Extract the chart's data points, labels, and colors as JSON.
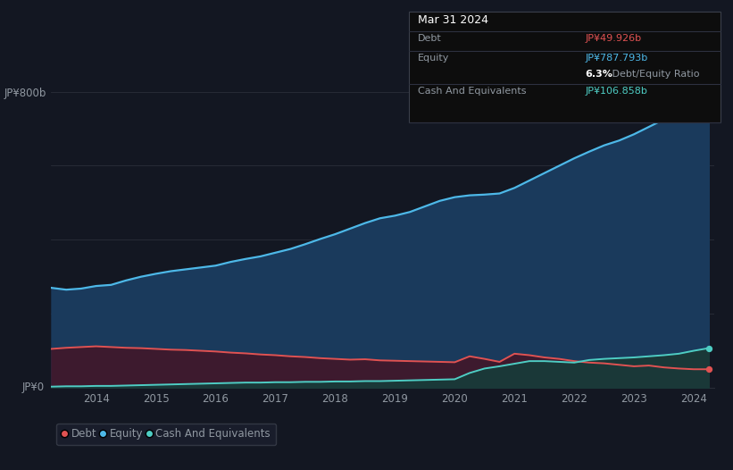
{
  "bg_color": "#131722",
  "plot_bg_color": "#131722",
  "title_box": {
    "date": "Mar 31 2024",
    "debt_label": "Debt",
    "debt_value": "JP¥49.926b",
    "equity_label": "Equity",
    "equity_value": "JP¥787.793b",
    "ratio_bold": "6.3%",
    "ratio_text": " Debt/Equity Ratio",
    "cash_label": "Cash And Equivalents",
    "cash_value": "JP¥106.858b"
  },
  "ylabel_800": "JP¥800b",
  "ylabel_0": "JP¥0",
  "years": [
    2013.25,
    2013.5,
    2013.75,
    2014.0,
    2014.25,
    2014.5,
    2014.75,
    2015.0,
    2015.25,
    2015.5,
    2015.75,
    2016.0,
    2016.25,
    2016.5,
    2016.75,
    2017.0,
    2017.25,
    2017.5,
    2017.75,
    2018.0,
    2018.25,
    2018.5,
    2018.75,
    2019.0,
    2019.25,
    2019.5,
    2019.75,
    2020.0,
    2020.25,
    2020.5,
    2020.75,
    2021.0,
    2021.25,
    2021.5,
    2021.75,
    2022.0,
    2022.25,
    2022.5,
    2022.75,
    2023.0,
    2023.25,
    2023.5,
    2023.75,
    2024.0,
    2024.25
  ],
  "equity": [
    270,
    265,
    268,
    275,
    278,
    290,
    300,
    308,
    315,
    320,
    325,
    330,
    340,
    348,
    355,
    365,
    375,
    388,
    402,
    415,
    430,
    445,
    458,
    465,
    475,
    490,
    505,
    515,
    520,
    522,
    525,
    540,
    560,
    580,
    600,
    620,
    638,
    655,
    668,
    685,
    705,
    725,
    748,
    788,
    788
  ],
  "debt": [
    105,
    108,
    110,
    112,
    110,
    108,
    107,
    105,
    103,
    102,
    100,
    98,
    95,
    93,
    90,
    88,
    85,
    83,
    80,
    78,
    76,
    77,
    74,
    73,
    72,
    71,
    70,
    69,
    85,
    78,
    70,
    92,
    88,
    82,
    78,
    72,
    68,
    66,
    62,
    58,
    60,
    55,
    52,
    50,
    50
  ],
  "cash": [
    3,
    4,
    4,
    5,
    5,
    6,
    7,
    8,
    9,
    10,
    11,
    12,
    13,
    14,
    14,
    15,
    15,
    16,
    16,
    17,
    17,
    18,
    18,
    19,
    20,
    21,
    22,
    23,
    40,
    52,
    58,
    65,
    72,
    72,
    70,
    68,
    75,
    78,
    80,
    82,
    85,
    88,
    92,
    100,
    107
  ],
  "debt_color": "#e05252",
  "equity_color": "#4db8e8",
  "cash_color": "#4ecdc4",
  "equity_fill": "#1a3a5c",
  "debt_fill": "#3d1a2e",
  "cash_fill": "#1a3838",
  "grid_color": "#2a2e39",
  "tick_color": "#9098a1",
  "label_color": "#9098a1",
  "ylim": [
    0,
    870
  ],
  "xlim": [
    2013.25,
    2024.35
  ],
  "xticks": [
    2014,
    2015,
    2016,
    2017,
    2018,
    2019,
    2020,
    2021,
    2022,
    2023,
    2024
  ]
}
